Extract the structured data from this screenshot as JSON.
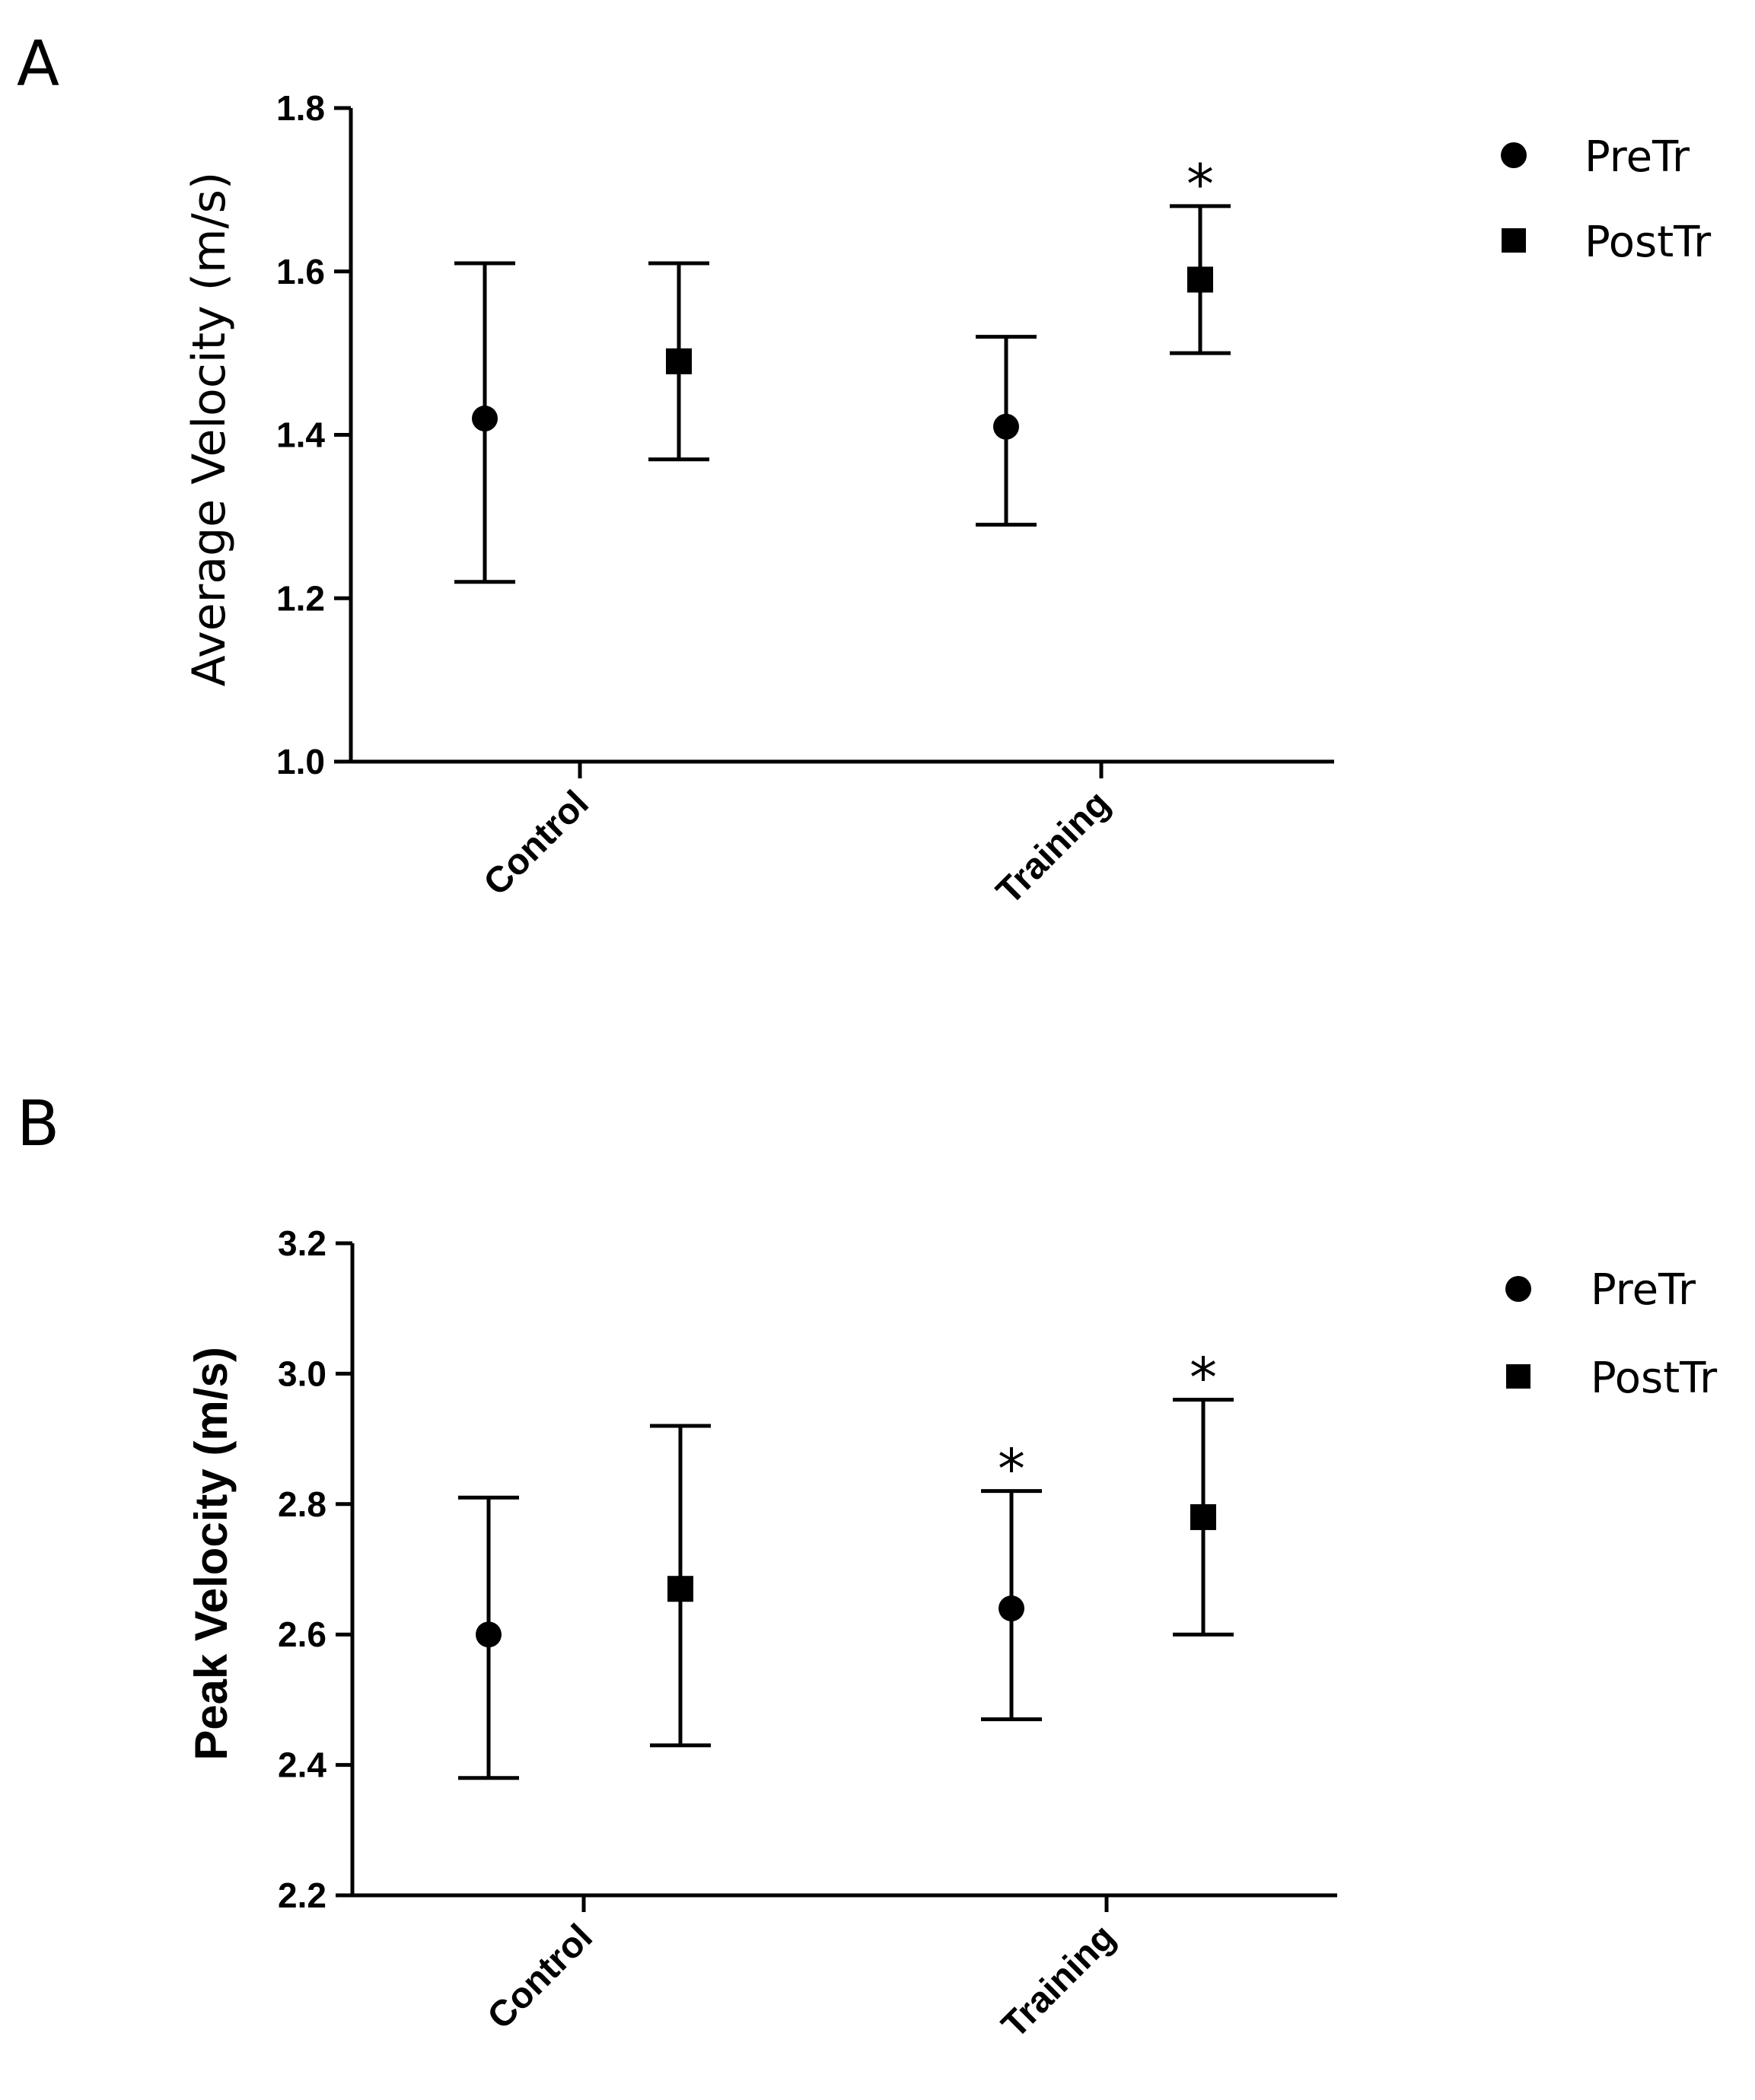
{
  "chart_data": [
    {
      "panel": "A",
      "type": "scatter",
      "title": "",
      "xlabel": "",
      "ylabel": "Average Velocity (m/s)",
      "ylim": [
        1.0,
        1.8
      ],
      "yticks": [
        "1.0",
        "1.2",
        "1.4",
        "1.6",
        "1.8"
      ],
      "yticks_values": [
        1.0,
        1.2,
        1.4,
        1.6,
        1.8
      ],
      "categories": [
        "Control",
        "Training"
      ],
      "legend_position": "right",
      "series": [
        {
          "name": "PreTr",
          "marker": "circle",
          "values": [
            1.42,
            1.41
          ],
          "err_low": [
            1.22,
            1.29
          ],
          "err_high": [
            1.61,
            1.52
          ],
          "significant": [
            "",
            ""
          ]
        },
        {
          "name": "PostTr",
          "marker": "square",
          "values": [
            1.49,
            1.59
          ],
          "err_low": [
            1.37,
            1.5
          ],
          "err_high": [
            1.61,
            1.68
          ],
          "significant": [
            "",
            "*"
          ]
        }
      ]
    },
    {
      "panel": "B",
      "type": "scatter",
      "title": "",
      "xlabel": "",
      "ylabel": "Peak Velocity (m/s)",
      "ylim": [
        2.2,
        3.2
      ],
      "yticks": [
        "2.2",
        "2.4",
        "2.6",
        "2.8",
        "3.0",
        "3.2"
      ],
      "yticks_values": [
        2.2,
        2.4,
        2.6,
        2.8,
        3.0,
        3.2
      ],
      "categories": [
        "Control",
        "Training"
      ],
      "legend_position": "right",
      "series": [
        {
          "name": "PreTr",
          "marker": "circle",
          "values": [
            2.6,
            2.64
          ],
          "err_low": [
            2.38,
            2.47
          ],
          "err_high": [
            2.81,
            2.82
          ],
          "significant": [
            "",
            "*"
          ]
        },
        {
          "name": "PostTr",
          "marker": "square",
          "values": [
            2.67,
            2.78
          ],
          "err_low": [
            2.43,
            2.6
          ],
          "err_high": [
            2.92,
            2.96
          ],
          "significant": [
            "",
            "*"
          ]
        }
      ]
    }
  ]
}
